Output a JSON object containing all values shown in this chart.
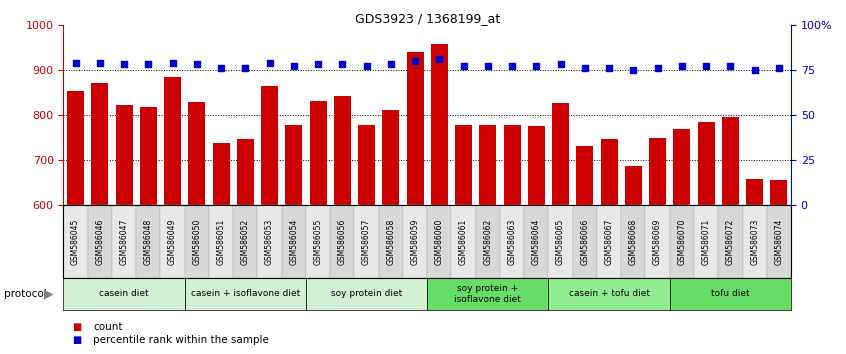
{
  "title": "GDS3923 / 1368199_at",
  "samples": [
    "GSM586045",
    "GSM586046",
    "GSM586047",
    "GSM586048",
    "GSM586049",
    "GSM586050",
    "GSM586051",
    "GSM586052",
    "GSM586053",
    "GSM586054",
    "GSM586055",
    "GSM586056",
    "GSM586057",
    "GSM586058",
    "GSM586059",
    "GSM586060",
    "GSM586061",
    "GSM586062",
    "GSM586063",
    "GSM586064",
    "GSM586065",
    "GSM586066",
    "GSM586067",
    "GSM586068",
    "GSM586069",
    "GSM586070",
    "GSM586071",
    "GSM586072",
    "GSM586073",
    "GSM586074"
  ],
  "counts": [
    853,
    872,
    822,
    818,
    885,
    829,
    737,
    748,
    864,
    777,
    832,
    843,
    779,
    811,
    940,
    957,
    778,
    778,
    778,
    775,
    826,
    732,
    747,
    688,
    750,
    768,
    784,
    795,
    659,
    655
  ],
  "percentile_ranks": [
    79,
    79,
    78,
    78,
    79,
    78,
    76,
    76,
    79,
    77,
    78,
    78,
    77,
    78,
    80,
    81,
    77,
    77,
    77,
    77,
    78,
    76,
    76,
    75,
    76,
    77,
    77,
    77,
    75,
    76
  ],
  "bar_color": "#cc0000",
  "dot_color": "#0000cc",
  "ylim_left": [
    600,
    1000
  ],
  "ylim_right": [
    0,
    100
  ],
  "yticks_left": [
    600,
    700,
    800,
    900,
    1000
  ],
  "yticks_right": [
    0,
    25,
    50,
    75,
    100
  ],
  "yticklabels_right": [
    "0",
    "25",
    "50",
    "75",
    "100%"
  ],
  "groups": [
    {
      "label": "casein diet",
      "start": 0,
      "end": 5,
      "color": "#d4f0d4"
    },
    {
      "label": "casein + isoflavone diet",
      "start": 5,
      "end": 10,
      "color": "#d4f0d4"
    },
    {
      "label": "soy protein diet",
      "start": 10,
      "end": 15,
      "color": "#d4f0d4"
    },
    {
      "label": "soy protein +\nisoflavone diet",
      "start": 15,
      "end": 20,
      "color": "#66dd66"
    },
    {
      "label": "casein + tofu diet",
      "start": 20,
      "end": 25,
      "color": "#90ee90"
    },
    {
      "label": "tofu diet",
      "start": 25,
      "end": 30,
      "color": "#66dd66"
    }
  ],
  "protocol_label": "protocol",
  "legend_count_label": "count",
  "legend_pct_label": "percentile rank within the sample",
  "bg_color": "#ffffff",
  "xtick_bg_even": "#e8e8e8",
  "xtick_bg_odd": "#d8d8d8"
}
